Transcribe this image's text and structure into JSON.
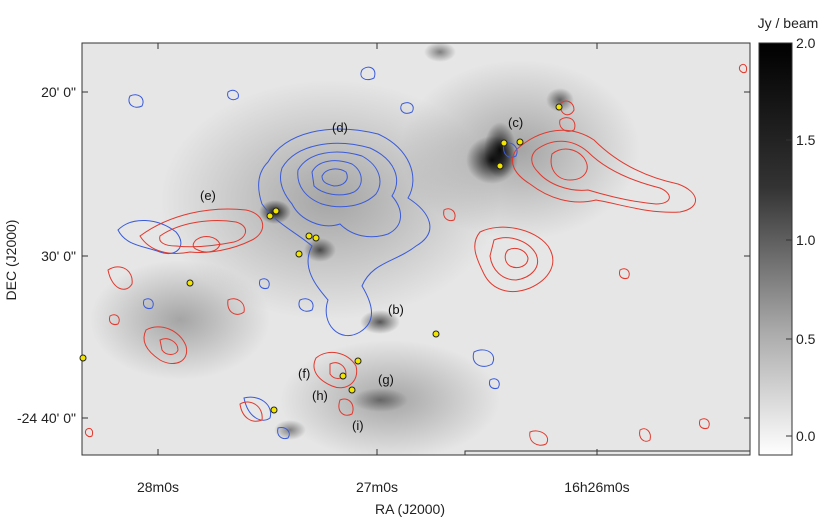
{
  "axes": {
    "xlabel": "RA (J2000)",
    "ylabel": "DEC (J2000)",
    "xticks": [
      "28m0s",
      "27m0s",
      "16h26m0s"
    ],
    "yticks": [
      "20' 0\"",
      "30' 0\"",
      "-24 40' 0\""
    ]
  },
  "colorbar": {
    "unit": "Jy / beam",
    "ticks": [
      "2.0",
      "1.5",
      "1.0",
      "0.5",
      "0.0"
    ],
    "range": [
      -0.2,
      2.0
    ]
  },
  "regions": [
    {
      "id": "b",
      "label": "(b)"
    },
    {
      "id": "c",
      "label": "(c)"
    },
    {
      "id": "d",
      "label": "(d)"
    },
    {
      "id": "e",
      "label": "(e)"
    },
    {
      "id": "f",
      "label": "(f)"
    },
    {
      "id": "g",
      "label": "(g)"
    },
    {
      "id": "h",
      "label": "(h)"
    },
    {
      "id": "i",
      "label": "(i)"
    }
  ],
  "colors": {
    "blue_contour": "#3a5bd9",
    "red_contour": "#e03a2f",
    "source_marker": "#f2e600"
  }
}
